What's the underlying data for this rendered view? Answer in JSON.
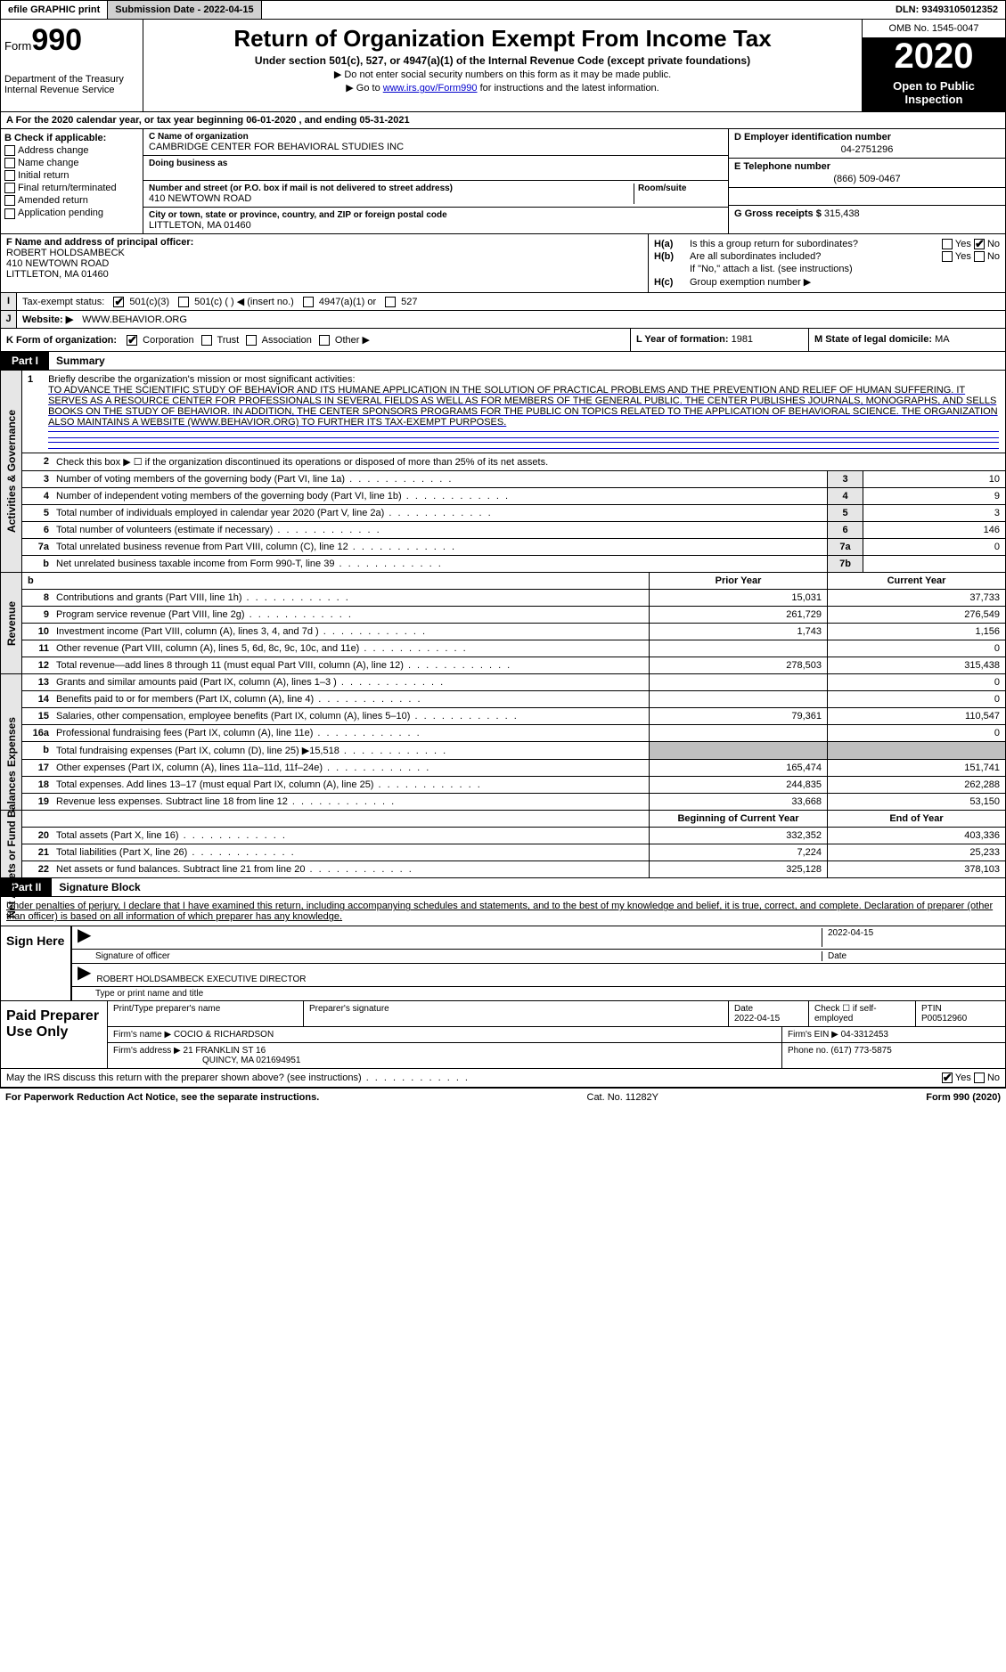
{
  "top": {
    "efile": "efile GRAPHIC print",
    "submission": "Submission Date - 2022-04-15",
    "dln": "DLN: 93493105012352"
  },
  "header": {
    "form_prefix": "Form",
    "form_num": "990",
    "dept": "Department of the Treasury\nInternal Revenue Service",
    "title": "Return of Organization Exempt From Income Tax",
    "sub": "Under section 501(c), 527, or 4947(a)(1) of the Internal Revenue Code (except private foundations)",
    "note1": "▶ Do not enter social security numbers on this form as it may be made public.",
    "note2_pre": "▶ Go to ",
    "note2_link": "www.irs.gov/Form990",
    "note2_post": " for instructions and the latest information.",
    "omb": "OMB No. 1545-0047",
    "year": "2020",
    "open": "Open to Public Inspection"
  },
  "row_a": "A For the 2020 calendar year, or tax year beginning 06-01-2020   , and ending 05-31-2021",
  "col_b": {
    "label": "B Check if applicable:",
    "items": [
      "Address change",
      "Name change",
      "Initial return",
      "Final return/terminated",
      "Amended return",
      "Application pending"
    ]
  },
  "col_c": {
    "name_lbl": "C Name of organization",
    "name": "CAMBRIDGE CENTER FOR BEHAVIORAL STUDIES INC",
    "dba_lbl": "Doing business as",
    "addr_lbl": "Number and street (or P.O. box if mail is not delivered to street address)",
    "addr": "410 NEWTOWN ROAD",
    "room_lbl": "Room/suite",
    "city_lbl": "City or town, state or province, country, and ZIP or foreign postal code",
    "city": "LITTLETON, MA  01460"
  },
  "col_d": {
    "ein_lbl": "D Employer identification number",
    "ein": "04-2751296",
    "tel_lbl": "E Telephone number",
    "tel": "(866) 509-0467",
    "gross_lbl": "G Gross receipts $",
    "gross": "315,438"
  },
  "col_f": {
    "lbl": "F  Name and address of principal officer:",
    "name": "ROBERT HOLDSAMBECK",
    "addr1": "410 NEWTOWN ROAD",
    "addr2": "LITTLETON, MA  01460"
  },
  "col_h": {
    "ha_lbl": "H(a)",
    "ha_txt": "Is this a group return for subordinates?",
    "hb_lbl": "H(b)",
    "hb_txt": "Are all subordinates included?",
    "hb_note": "If \"No,\" attach a list. (see instructions)",
    "hc_lbl": "H(c)",
    "hc_txt": "Group exemption number ▶",
    "yes": "Yes",
    "no": "No"
  },
  "row_i": {
    "lbl": "Tax-exempt status:",
    "o1": "501(c)(3)",
    "o2": "501(c) (  ) ◀ (insert no.)",
    "o3": "4947(a)(1) or",
    "o4": "527"
  },
  "row_j": {
    "lbl": "Website: ▶",
    "val": "WWW.BEHAVIOR.ORG"
  },
  "row_k": {
    "lbl": "K Form of organization:",
    "opts": [
      "Corporation",
      "Trust",
      "Association",
      "Other ▶"
    ],
    "l_lbl": "L Year of formation:",
    "l_val": "1981",
    "m_lbl": "M State of legal domicile:",
    "m_val": "MA"
  },
  "part1": {
    "tag": "Part I",
    "title": "Summary"
  },
  "mission": {
    "num": "1",
    "lbl": "Briefly describe the organization's mission or most significant activities:",
    "txt": "TO ADVANCE THE SCIENTIFIC STUDY OF BEHAVIOR AND ITS HUMANE APPLICATION IN THE SOLUTION OF PRACTICAL PROBLEMS AND THE PREVENTION AND RELIEF OF HUMAN SUFFERING. IT SERVES AS A RESOURCE CENTER FOR PROFESSIONALS IN SEVERAL FIELDS AS WELL AS FOR MEMBERS OF THE GENERAL PUBLIC. THE CENTER PUBLISHES JOURNALS, MONOGRAPHS, AND SELLS BOOKS ON THE STUDY OF BEHAVIOR. IN ADDITION, THE CENTER SPONSORS PROGRAMS FOR THE PUBLIC ON TOPICS RELATED TO THE APPLICATION OF BEHAVIORAL SCIENCE. THE ORGANIZATION ALSO MAINTAINS A WEBSITE (WWW.BEHAVIOR.ORG) TO FURTHER ITS TAX-EXEMPT PURPOSES."
  },
  "gov_side": "Activities & Governance",
  "gov_lines": [
    {
      "n": "2",
      "d": "Check this box ▶ ☐ if the organization discontinued its operations or disposed of more than 25% of its net assets.",
      "nb": "",
      "v": ""
    },
    {
      "n": "3",
      "d": "Number of voting members of the governing body (Part VI, line 1a)",
      "nb": "3",
      "v": "10"
    },
    {
      "n": "4",
      "d": "Number of independent voting members of the governing body (Part VI, line 1b)",
      "nb": "4",
      "v": "9"
    },
    {
      "n": "5",
      "d": "Total number of individuals employed in calendar year 2020 (Part V, line 2a)",
      "nb": "5",
      "v": "3"
    },
    {
      "n": "6",
      "d": "Total number of volunteers (estimate if necessary)",
      "nb": "6",
      "v": "146"
    },
    {
      "n": "7a",
      "d": "Total unrelated business revenue from Part VIII, column (C), line 12",
      "nb": "7a",
      "v": "0"
    },
    {
      "n": "b",
      "d": "Net unrelated business taxable income from Form 990-T, line 39",
      "nb": "7b",
      "v": ""
    }
  ],
  "rev_side": "Revenue",
  "col_hdrs": {
    "prior": "Prior Year",
    "current": "Current Year"
  },
  "rev_lines": [
    {
      "n": "8",
      "d": "Contributions and grants (Part VIII, line 1h)",
      "p": "15,031",
      "c": "37,733"
    },
    {
      "n": "9",
      "d": "Program service revenue (Part VIII, line 2g)",
      "p": "261,729",
      "c": "276,549"
    },
    {
      "n": "10",
      "d": "Investment income (Part VIII, column (A), lines 3, 4, and 7d )",
      "p": "1,743",
      "c": "1,156"
    },
    {
      "n": "11",
      "d": "Other revenue (Part VIII, column (A), lines 5, 6d, 8c, 9c, 10c, and 11e)",
      "p": "",
      "c": "0"
    },
    {
      "n": "12",
      "d": "Total revenue—add lines 8 through 11 (must equal Part VIII, column (A), line 12)",
      "p": "278,503",
      "c": "315,438"
    }
  ],
  "exp_side": "Expenses",
  "exp_lines": [
    {
      "n": "13",
      "d": "Grants and similar amounts paid (Part IX, column (A), lines 1–3 )",
      "p": "",
      "c": "0"
    },
    {
      "n": "14",
      "d": "Benefits paid to or for members (Part IX, column (A), line 4)",
      "p": "",
      "c": "0"
    },
    {
      "n": "15",
      "d": "Salaries, other compensation, employee benefits (Part IX, column (A), lines 5–10)",
      "p": "79,361",
      "c": "110,547"
    },
    {
      "n": "16a",
      "d": "Professional fundraising fees (Part IX, column (A), line 11e)",
      "p": "",
      "c": "0"
    },
    {
      "n": "b",
      "d": "Total fundraising expenses (Part IX, column (D), line 25) ▶15,518",
      "p": "shade",
      "c": "shade"
    },
    {
      "n": "17",
      "d": "Other expenses (Part IX, column (A), lines 11a–11d, 11f–24e)",
      "p": "165,474",
      "c": "151,741"
    },
    {
      "n": "18",
      "d": "Total expenses. Add lines 13–17 (must equal Part IX, column (A), line 25)",
      "p": "244,835",
      "c": "262,288"
    },
    {
      "n": "19",
      "d": "Revenue less expenses. Subtract line 18 from line 12",
      "p": "33,668",
      "c": "53,150"
    }
  ],
  "net_side": "Net Assets or Fund Balances",
  "net_hdrs": {
    "beg": "Beginning of Current Year",
    "end": "End of Year"
  },
  "net_lines": [
    {
      "n": "20",
      "d": "Total assets (Part X, line 16)",
      "p": "332,352",
      "c": "403,336"
    },
    {
      "n": "21",
      "d": "Total liabilities (Part X, line 26)",
      "p": "7,224",
      "c": "25,233"
    },
    {
      "n": "22",
      "d": "Net assets or fund balances. Subtract line 21 from line 20",
      "p": "325,128",
      "c": "378,103"
    }
  ],
  "part2": {
    "tag": "Part II",
    "title": "Signature Block"
  },
  "sig_decl": "Under penalties of perjury, I declare that I have examined this return, including accompanying schedules and statements, and to the best of my knowledge and belief, it is true, correct, and complete. Declaration of preparer (other than officer) is based on all information of which preparer has any knowledge.",
  "sign": {
    "here": "Sign Here",
    "off_lbl": "Signature of officer",
    "date_lbl": "Date",
    "date": "2022-04-15",
    "name": "ROBERT HOLDSAMBECK  EXECUTIVE DIRECTOR",
    "name_lbl": "Type or print name and title"
  },
  "prep": {
    "lbl": "Paid Preparer Use Only",
    "h1": "Print/Type preparer's name",
    "h2": "Preparer's signature",
    "h3": "Date",
    "h3v": "2022-04-15",
    "h4": "Check ☐ if self-employed",
    "h5": "PTIN",
    "h5v": "P00512960",
    "firm_lbl": "Firm's name    ▶",
    "firm": "COCIO & RICHARDSON",
    "ein_lbl": "Firm's EIN ▶",
    "ein": "04-3312453",
    "addr_lbl": "Firm's address ▶",
    "addr1": "21 FRANKLIN ST 16",
    "addr2": "QUINCY, MA  021694951",
    "phone_lbl": "Phone no.",
    "phone": "(617) 773-5875"
  },
  "discuss": {
    "txt": "May the IRS discuss this return with the preparer shown above? (see instructions)",
    "yes": "Yes",
    "no": "No"
  },
  "footer": {
    "left": "For Paperwork Reduction Act Notice, see the separate instructions.",
    "mid": "Cat. No. 11282Y",
    "right": "Form 990 (2020)"
  }
}
